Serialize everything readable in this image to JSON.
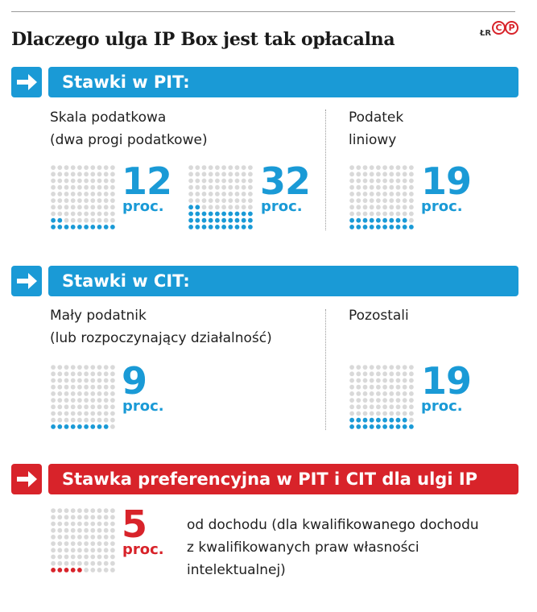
{
  "title": "Dlaczego ulga IP Box jest tak opłacalna",
  "source": "ŁR",
  "logo_letters": [
    "C",
    "P"
  ],
  "icons": {
    "arrow": "arrow-right-icon",
    "logo": "logo-cp-icon"
  },
  "colors": {
    "blue": "#1a9ad6",
    "red": "#d8232a",
    "grey_dot": "#d9d9d9"
  },
  "sections": {
    "pit": {
      "heading": "Stawki w PIT:",
      "groups": {
        "scale": {
          "label_line1": "Skala podatkowa",
          "label_line2": "(dwa progi podatkowe)"
        },
        "linear": {
          "label_line1": "Podatek",
          "label_line2": "liniowy"
        }
      }
    },
    "cit": {
      "heading": "Stawki w CIT:",
      "groups": {
        "small": {
          "label_line1": "Mały podatnik",
          "label_line2": "(lub rozpoczynający działalność)"
        },
        "other": {
          "label_line1": "Pozostali"
        }
      }
    },
    "ipbox": {
      "heading": "Stawka preferencyjna w PIT i CIT dla ulgi IP Box",
      "desc_line1": "od dochodu (dla kwalifikowanego dochodu",
      "desc_line2": "z kwalifikowanych praw własności",
      "desc_line3": "intelektualnej)"
    }
  },
  "chart_data": {
    "type": "waffle",
    "total_units": 100,
    "unit": "proc.",
    "items": [
      {
        "section": "PIT",
        "group": "Skala podatkowa",
        "value": 12,
        "value_label": "12",
        "unit_label": "proc.",
        "color": "#1a9ad6"
      },
      {
        "section": "PIT",
        "group": "Skala podatkowa",
        "value": 32,
        "value_label": "32",
        "unit_label": "proc.",
        "color": "#1a9ad6"
      },
      {
        "section": "PIT",
        "group": "Podatek liniowy",
        "value": 19,
        "value_label": "19",
        "unit_label": "proc.",
        "color": "#1a9ad6"
      },
      {
        "section": "CIT",
        "group": "Mały podatnik",
        "value": 9,
        "value_label": "9",
        "unit_label": "proc.",
        "color": "#1a9ad6"
      },
      {
        "section": "CIT",
        "group": "Pozostali",
        "value": 19,
        "value_label": "19",
        "unit_label": "proc.",
        "color": "#1a9ad6"
      },
      {
        "section": "IP Box",
        "group": "Stawka preferencyjna",
        "value": 5,
        "value_label": "5",
        "unit_label": "proc.",
        "color": "#d8232a"
      }
    ]
  }
}
